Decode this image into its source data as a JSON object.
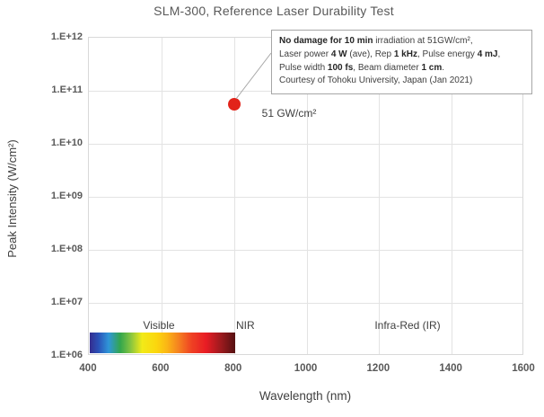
{
  "title": "SLM-300, Reference Laser Durability Test",
  "axes": {
    "x": {
      "label": "Wavelength (nm)",
      "ticks": [
        "400",
        "600",
        "800",
        "1000",
        "1200",
        "1400",
        "1600"
      ]
    },
    "y": {
      "label": "Peak Intensity (W/cm²)",
      "ticks": [
        "1.E+12",
        "1.E+11",
        "1.E+10",
        "1.E+09",
        "1.E+08",
        "1.E+07",
        "1.E+06"
      ]
    }
  },
  "regions": {
    "visible": "Visible",
    "nir": "NIR",
    "ir": "Infra-Red (IR)"
  },
  "point": {
    "label": "51 GW/cm²",
    "color": "#e2231a"
  },
  "annotation": {
    "lines": [
      [
        {
          "t": "No damage for 10 min",
          "b": true
        },
        {
          "t": " irradiation at 51GW/cm²,"
        }
      ],
      [
        {
          "t": "Laser power "
        },
        {
          "t": "4 W",
          "b": true
        },
        {
          "t": " (ave), Rep "
        },
        {
          "t": "1 kHz",
          "b": true
        },
        {
          "t": ", Pulse energy "
        },
        {
          "t": "4 mJ",
          "b": true
        },
        {
          "t": ","
        }
      ],
      [
        {
          "t": "Pulse width "
        },
        {
          "t": "100 fs",
          "b": true
        },
        {
          "t": ", Beam diameter "
        },
        {
          "t": "1 cm",
          "b": true
        },
        {
          "t": "."
        }
      ],
      [
        {
          "t": "Courtesy of Tohoku University, Japan (Jan 2021)"
        }
      ]
    ]
  },
  "chart_data": {
    "type": "scatter",
    "title": "SLM-300, Reference Laser Durability Test",
    "xlabel": "Wavelength (nm)",
    "ylabel": "Peak Intensity (W/cm²)",
    "x_ticks": [
      400,
      600,
      800,
      1000,
      1200,
      1400,
      1600
    ],
    "y_ticks": [
      "1.E+12",
      "1.E+11",
      "1.E+10",
      "1.E+09",
      "1.E+08",
      "1.E+07",
      "1.E+06"
    ],
    "xlim": [
      400,
      1600
    ],
    "ylim": [
      1000000,
      1000000000000
    ],
    "y_scale": "log",
    "grid": true,
    "points": [
      {
        "x": 800,
        "y": 51000000000,
        "label": "51 GW/cm²",
        "marker": "circle",
        "color": "#e2231a"
      }
    ],
    "spectrum_bar": {
      "x_range": [
        400,
        800
      ],
      "description": "visible-light rainbow gradient bar along bottom of plot"
    },
    "region_labels": [
      {
        "label": "Visible",
        "x_center": 595
      },
      {
        "label": "NIR",
        "x_left": 805
      },
      {
        "label": "Infra-Red (IR)",
        "x_center": 1280
      }
    ],
    "annotation_text": "No damage for 10 min irradiation at 51GW/cm², Laser power 4 W (ave), Rep 1 kHz, Pulse energy 4 mJ, Pulse width 100 fs, Beam diameter 1 cm. Courtesy of Tohoku University, Japan (Jan 2021)"
  }
}
